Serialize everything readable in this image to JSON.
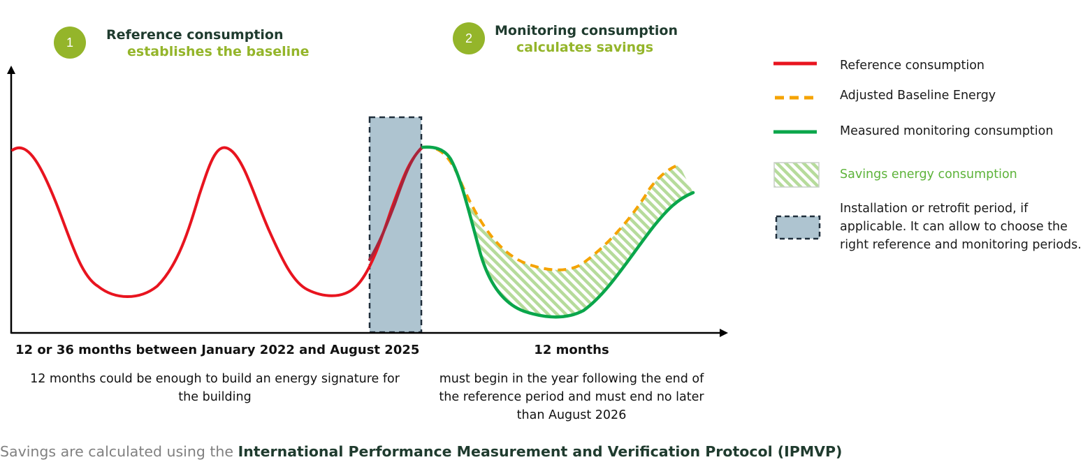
{
  "steps": [
    {
      "number": "1",
      "title": "Reference consumption",
      "subtitle": "establishes the baseline"
    },
    {
      "number": "2",
      "title": "Monitoring consumption",
      "subtitle": "calculates savings"
    }
  ],
  "periods": {
    "reference": {
      "label": "12 or 36 months between January 2022 and August 2025",
      "description": "12 months could be enough to build an energy signature for the building"
    },
    "monitoring": {
      "label": "12 months",
      "description": "must begin in the year following the end of the reference period and must end no later than August 2026"
    }
  },
  "legend": [
    {
      "label": "Reference consumption",
      "color": "#e8141f",
      "style": "solid-line"
    },
    {
      "label": "Adjusted Baseline Energy",
      "color": "#f5a300",
      "style": "dashed-line"
    },
    {
      "label": "Measured monitoring consumption",
      "color": "#0aa64b",
      "style": "solid-line"
    },
    {
      "label": "Savings energy consumption",
      "color": "#5db33a",
      "style": "hatched-fill"
    },
    {
      "label": "Installation or retrofit period, if applicable. It can allow to choose the right reference and monitoring periods.",
      "color": "#aec4d0",
      "style": "dashed-box"
    }
  ],
  "footer": {
    "prefix": "Savings are calculated using the ",
    "emphasis": "International Performance Measurement and Verification Protocol (IPMVP)"
  },
  "colors": {
    "accent_green": "#94b52a",
    "dark_green": "#1f3b2e",
    "reference_line": "#e8141f",
    "baseline_line": "#f5a300",
    "monitoring_line": "#0aa64b",
    "retrofit_fill": "#aec4d0"
  }
}
